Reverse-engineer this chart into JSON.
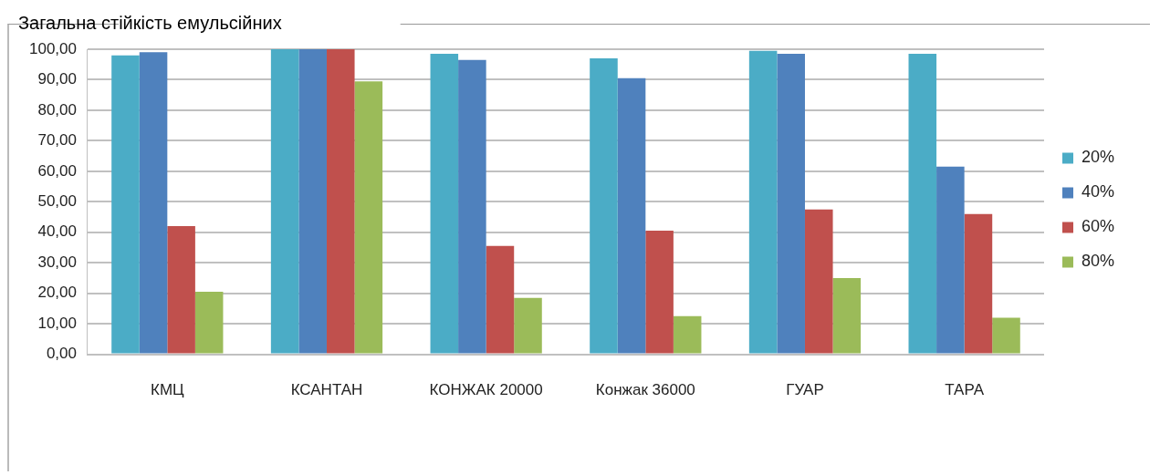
{
  "chart_data": {
    "type": "bar",
    "title": "Загальна стійкість емульсійних",
    "categories": [
      "КМЦ",
      "КСАНТАН",
      "КОНЖАК 20000",
      "Конжак 36000",
      "ГУАР",
      "ТАРА"
    ],
    "series": [
      {
        "name": "20%",
        "color": "#4bacc6",
        "values": [
          98,
          100,
          98.5,
          97,
          99.5,
          98.5
        ]
      },
      {
        "name": "40%",
        "color": "#4f81bd",
        "values": [
          99,
          100,
          96.5,
          90.5,
          98.5,
          61.5
        ]
      },
      {
        "name": "60%",
        "color": "#c0504d",
        "values": [
          42,
          100,
          35.5,
          40.5,
          47.5,
          46
        ]
      },
      {
        "name": "80%",
        "color": "#9bbb59",
        "values": [
          20.5,
          89.5,
          18.5,
          12.5,
          25,
          12
        ]
      }
    ],
    "ylim": [
      0,
      100
    ],
    "yticks": [
      {
        "value": 0,
        "label": "0,00"
      },
      {
        "value": 10,
        "label": "10,00"
      },
      {
        "value": 20,
        "label": "20,00"
      },
      {
        "value": 30,
        "label": "30,00"
      },
      {
        "value": 40,
        "label": "40,00"
      },
      {
        "value": 50,
        "label": "50,00"
      },
      {
        "value": 60,
        "label": "60,00"
      },
      {
        "value": 70,
        "label": "70,00"
      },
      {
        "value": 80,
        "label": "80,00"
      },
      {
        "value": 90,
        "label": "90,00"
      },
      {
        "value": 100,
        "label": "100,00"
      }
    ],
    "grid": "y",
    "legend": "right"
  }
}
